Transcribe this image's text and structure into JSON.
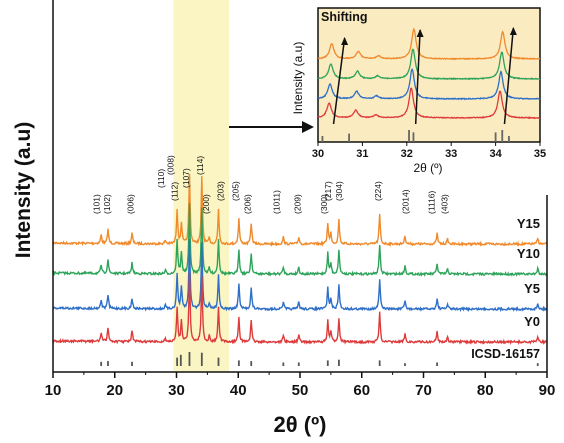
{
  "chart_data": {
    "type": "line",
    "ylabel": "Intensity (a.u)",
    "xlabel": "2θ (º)",
    "xlim": [
      10,
      90
    ],
    "x_ticks": [
      "10",
      "20",
      "30",
      "40",
      "50",
      "60",
      "70",
      "80",
      "90"
    ],
    "highlight_band": [
      29.5,
      38.5
    ],
    "series": [
      {
        "name": "Y15",
        "color": "#F08A2C"
      },
      {
        "name": "Y10",
        "color": "#2EA35A"
      },
      {
        "name": "Y5",
        "color": "#2F6FC8"
      },
      {
        "name": "Y0",
        "color": "#DD3B3B"
      }
    ],
    "reference": {
      "name": "ICSD-16157",
      "color": "#555555",
      "peaks": [
        {
          "x": 17.8,
          "h": 0.3
        },
        {
          "x": 18.9,
          "h": 0.35
        },
        {
          "x": 22.8,
          "h": 0.3
        },
        {
          "x": 30.1,
          "h": 0.6
        },
        {
          "x": 30.7,
          "h": 0.8
        },
        {
          "x": 32.1,
          "h": 1.0
        },
        {
          "x": 34.1,
          "h": 0.95
        },
        {
          "x": 36.8,
          "h": 0.6
        },
        {
          "x": 40.1,
          "h": 0.4
        },
        {
          "x": 42.1,
          "h": 0.35
        },
        {
          "x": 47.3,
          "h": 0.25
        },
        {
          "x": 49.8,
          "h": 0.25
        },
        {
          "x": 54.5,
          "h": 0.4
        },
        {
          "x": 56.3,
          "h": 0.45
        },
        {
          "x": 62.9,
          "h": 0.4
        },
        {
          "x": 67.0,
          "h": 0.2
        },
        {
          "x": 72.2,
          "h": 0.25
        },
        {
          "x": 88.5,
          "h": 0.2
        }
      ]
    },
    "peak_labels": [
      {
        "text": "(101)",
        "x": 17.5,
        "row": 0
      },
      {
        "text": "(102)",
        "x": 19.2,
        "row": 0
      },
      {
        "text": "(006)",
        "x": 23.0,
        "row": 0
      },
      {
        "text": "(110)",
        "x": 28.0,
        "row": 2
      },
      {
        "text": "(008)",
        "x": 29.5,
        "row": 3
      },
      {
        "text": "(112)",
        "x": 30.2,
        "row": 1
      },
      {
        "text": "(107)",
        "x": 32.0,
        "row": 2
      },
      {
        "text": "(114)",
        "x": 34.3,
        "row": 3
      },
      {
        "text": "(200)",
        "x": 35.3,
        "row": 0
      },
      {
        "text": "(203)",
        "x": 37.6,
        "row": 1
      },
      {
        "text": "(205)",
        "x": 40.0,
        "row": 1
      },
      {
        "text": "(206)",
        "x": 42.0,
        "row": 0
      },
      {
        "text": "(1011)",
        "x": 46.7,
        "row": 0
      },
      {
        "text": "(209)",
        "x": 50.1,
        "row": 0
      },
      {
        "text": "(300)",
        "x": 54.4,
        "row": 0
      },
      {
        "text": "(217)",
        "x": 55.0,
        "row": 1
      },
      {
        "text": "(304)",
        "x": 56.8,
        "row": 1
      },
      {
        "text": "(224)",
        "x": 63.1,
        "row": 1
      },
      {
        "text": "(2014)",
        "x": 67.6,
        "row": 0
      },
      {
        "text": "(1116)",
        "x": 71.8,
        "row": 0
      },
      {
        "text": "(403)",
        "x": 73.9,
        "row": 0
      }
    ],
    "inset": {
      "title": "Shifting",
      "xlabel": "2θ (º)",
      "ylabel": "Intensity (a.u)",
      "xlim": [
        30,
        35
      ],
      "x_ticks": [
        "30",
        "31",
        "32",
        "33",
        "34",
        "35"
      ]
    }
  }
}
